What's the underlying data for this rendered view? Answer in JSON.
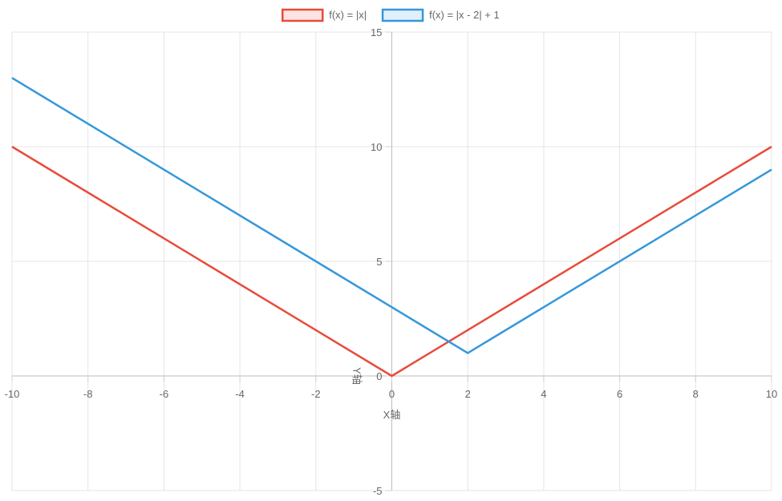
{
  "chart_data": {
    "type": "line",
    "xlabel": "X轴",
    "ylabel": "Y轴",
    "xlim": [
      -10,
      10
    ],
    "ylim": [
      -5,
      15
    ],
    "x_ticks": [
      -10,
      -8,
      -6,
      -4,
      -2,
      0,
      2,
      4,
      6,
      8,
      10
    ],
    "y_ticks": [
      -5,
      0,
      5,
      10,
      15
    ],
    "grid": true,
    "legend": "top-center",
    "series": [
      {
        "name": "f(x) = |x|",
        "color": "#e74c3c",
        "fill": "#fde3e1",
        "points": [
          [
            -10,
            10
          ],
          [
            0,
            0
          ],
          [
            10,
            10
          ]
        ]
      },
      {
        "name": "f(x) = |x - 2| + 1",
        "color": "#3498db",
        "fill": "#e1f0fa",
        "points": [
          [
            -10,
            13
          ],
          [
            2,
            1
          ],
          [
            10,
            9
          ]
        ]
      }
    ]
  }
}
